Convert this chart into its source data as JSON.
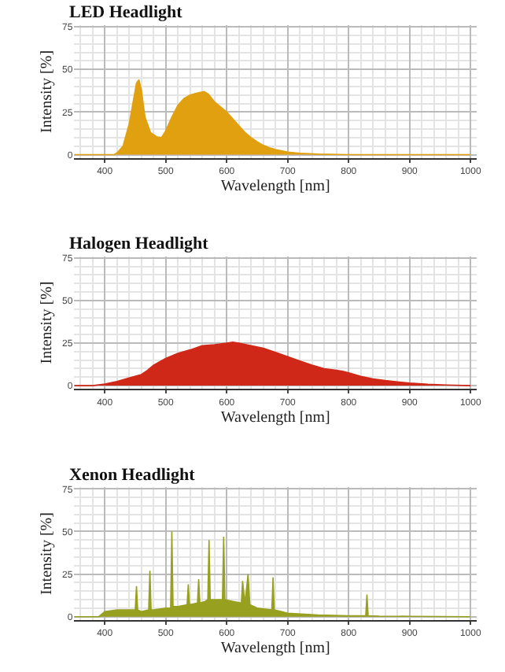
{
  "chart_data": [
    {
      "type": "area",
      "title": "LED Headlight",
      "xlabel": "Wavelength [nm]",
      "ylabel": "Intensity [%]",
      "xlim": [
        350,
        1010
      ],
      "ylim": [
        -2,
        76
      ],
      "xticks": [
        400,
        500,
        600,
        700,
        800,
        900,
        1000
      ],
      "yticks": [
        0,
        25,
        50,
        75
      ],
      "grid": true,
      "series": [
        {
          "color": "#e0a010",
          "x": [
            350,
            415,
            420,
            430,
            440,
            448,
            452,
            456,
            460,
            466,
            475,
            485,
            493,
            500,
            510,
            520,
            530,
            540,
            550,
            563,
            570,
            580,
            590,
            600,
            610,
            620,
            630,
            640,
            650,
            660,
            670,
            680,
            700,
            720,
            750,
            800,
            1000
          ],
          "values": [
            0,
            0,
            1,
            5,
            18,
            34,
            42,
            44,
            38,
            22,
            13,
            10.5,
            10,
            14,
            22,
            29,
            33,
            35,
            36,
            37,
            35.5,
            31,
            28,
            25,
            21,
            17,
            13,
            10,
            7.5,
            5.5,
            4,
            3,
            1.5,
            0.8,
            0.3,
            0,
            0
          ]
        }
      ]
    },
    {
      "type": "area",
      "title": "Halogen Headlight",
      "xlabel": "Wavelength [nm]",
      "ylabel": "Intensity [%]",
      "xlim": [
        350,
        1010
      ],
      "ylim": [
        -2,
        76
      ],
      "xticks": [
        400,
        500,
        600,
        700,
        800,
        900,
        1000
      ],
      "yticks": [
        0,
        25,
        50,
        75
      ],
      "grid": true,
      "series": [
        {
          "color": "#d02818",
          "x": [
            350,
            380,
            400,
            420,
            440,
            460,
            470,
            480,
            490,
            500,
            520,
            540,
            560,
            580,
            600,
            610,
            620,
            640,
            660,
            680,
            700,
            720,
            740,
            760,
            780,
            790,
            800,
            820,
            840,
            860,
            880,
            900,
            930,
            960,
            1000
          ],
          "values": [
            0,
            0,
            1,
            2.5,
            4.5,
            6.5,
            9,
            12,
            14,
            16,
            19,
            21,
            23.5,
            24,
            25,
            25.5,
            25,
            23.5,
            22,
            19.5,
            17,
            14.5,
            12,
            10,
            9,
            8.5,
            7.5,
            5.5,
            4,
            3,
            2.2,
            1.5,
            0.8,
            0.4,
            0
          ]
        }
      ]
    },
    {
      "type": "area",
      "title": "Xenon Headlight",
      "xlabel": "Wavelength [nm]",
      "ylabel": "Intensity [%]",
      "xlim": [
        350,
        1010
      ],
      "ylim": [
        -2,
        76
      ],
      "xticks": [
        400,
        500,
        600,
        700,
        800,
        900,
        1000
      ],
      "yticks": [
        0,
        25,
        50,
        75
      ],
      "grid": true,
      "series": [
        {
          "color": "#98a020",
          "x": [
            350,
            390,
            400,
            420,
            440,
            450,
            452,
            454,
            460,
            472,
            474,
            476,
            480,
            500,
            508,
            510,
            512,
            520,
            535,
            537,
            539,
            552,
            554,
            556,
            565,
            569,
            571,
            573,
            580,
            593,
            595,
            597,
            610,
            624,
            626,
            630,
            635,
            638,
            650,
            674,
            676,
            678,
            690,
            700,
            750,
            800,
            828,
            830,
            832,
            850,
            900,
            1000
          ],
          "values": [
            0,
            0,
            3,
            4,
            4,
            4,
            18,
            4,
            3,
            4,
            27,
            4,
            4,
            5,
            5,
            50,
            6,
            6,
            7,
            19,
            7,
            8,
            22,
            8,
            9,
            10,
            45,
            10,
            10,
            10,
            47,
            10,
            9,
            8,
            21,
            8,
            25,
            7,
            5,
            4,
            23,
            4,
            3,
            2,
            1,
            0.5,
            0.5,
            13,
            0.5,
            0.3,
            0.2,
            0
          ]
        }
      ]
    }
  ]
}
